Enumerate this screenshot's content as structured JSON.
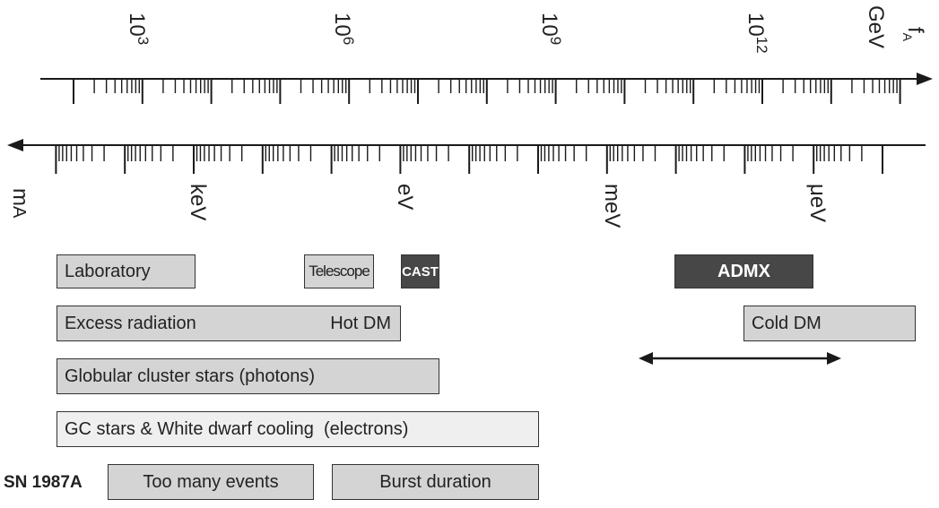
{
  "axis_top": {
    "variable_label": "f",
    "variable_sub": "A",
    "unit": "GeV",
    "exponents": [
      {
        "base": "10",
        "exp": "3"
      },
      {
        "base": "10",
        "exp": "6"
      },
      {
        "base": "10",
        "exp": "9"
      },
      {
        "base": "10",
        "exp": "12"
      }
    ]
  },
  "axis_bottom": {
    "variable_label": "m",
    "variable_sub": "A",
    "units": [
      "keV",
      "eV",
      "meV",
      "μeV"
    ]
  },
  "bars": {
    "laboratory": "Laboratory",
    "telescope": "Telescope",
    "cast": "CAST",
    "admx": "ADMX",
    "excess_radiation": "Excess radiation",
    "hot_dm": "Hot DM",
    "cold_dm": "Cold DM",
    "globular": "Globular cluster stars (photons)",
    "gc_wd": "GC stars & White dwarf cooling  (electrons)",
    "sn_label": "SN 1987A",
    "too_many": "Too many events",
    "burst": "Burst duration"
  },
  "colors": {
    "bar_fill": "#d4d4d4",
    "bar_light": "#efefef",
    "bar_dark": "#474747",
    "line": "#1a1a1a"
  }
}
